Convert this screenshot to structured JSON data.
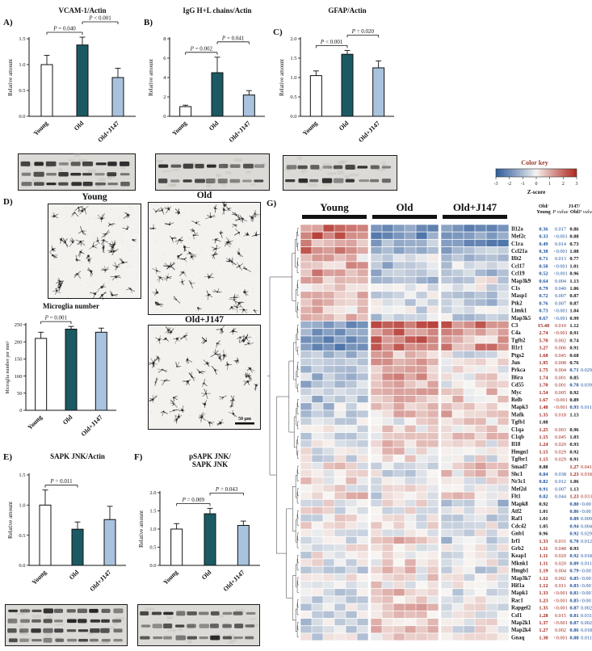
{
  "panel_labels": {
    "a": "A)",
    "b": "B)",
    "c": "C)",
    "d": "D)",
    "e": "E)",
    "f": "F)",
    "g": "G)"
  },
  "panel_d": {
    "images": [
      {
        "label": "Young"
      },
      {
        "label": "Old"
      },
      {
        "label": "Old+J147",
        "scale_bar": "50 µm"
      }
    ]
  },
  "chart_data": [
    {
      "type": "bar",
      "panel": "A",
      "title": [
        "VCAM-1/Actin"
      ],
      "ylabel": "Relative amount",
      "categories": [
        "Young",
        "Old",
        "Old+J147"
      ],
      "values": [
        1.0,
        1.38,
        0.75
      ],
      "errors": [
        0.18,
        0.2,
        0.18
      ],
      "ylim": [
        0,
        1.5
      ],
      "yticks": [
        0,
        0.5,
        1.0,
        1.5
      ],
      "ytick_labels": [
        "0.0",
        "0.5",
        "1.0",
        "1.5"
      ],
      "colors": [
        "#ffffff",
        "#1b5a63",
        "#a9c2dd"
      ],
      "sig": [
        {
          "a": 0,
          "b": 1,
          "label": "P = 0.040",
          "lvl": 1
        },
        {
          "a": 1,
          "b": 2,
          "label": "P < 0.001",
          "lvl": 2
        }
      ]
    },
    {
      "type": "bar",
      "panel": "B",
      "title": [
        "IgG H+L chains/Actin"
      ],
      "ylabel": "Relative amount",
      "categories": [
        "Young",
        "Old",
        "Old+J147"
      ],
      "values": [
        1.0,
        4.5,
        2.2
      ],
      "errors": [
        0.15,
        1.6,
        0.45
      ],
      "ylim": [
        0,
        8
      ],
      "yticks": [
        0,
        2,
        4,
        6,
        8
      ],
      "ytick_labels": [
        "0",
        "2",
        "4",
        "6",
        "8"
      ],
      "colors": [
        "#ffffff",
        "#1b5a63",
        "#a9c2dd"
      ],
      "sig": [
        {
          "a": 0,
          "b": 1,
          "label": "P = 0.002",
          "lvl": 1
        },
        {
          "a": 1,
          "b": 2,
          "label": "P = 0.041",
          "lvl": 2
        }
      ]
    },
    {
      "type": "bar",
      "panel": "C",
      "title": [
        "GFAP/Actin"
      ],
      "ylabel": "Relative amount",
      "categories": [
        "Young",
        "Old",
        "Old+J147"
      ],
      "values": [
        1.05,
        1.6,
        1.25
      ],
      "errors": [
        0.12,
        0.1,
        0.18
      ],
      "ylim": [
        0,
        2
      ],
      "yticks": [
        0,
        0.5,
        1.0,
        1.5,
        2.0
      ],
      "ytick_labels": [
        "0.0",
        "0.5",
        "1.0",
        "1.5",
        "2.0"
      ],
      "colors": [
        "#ffffff",
        "#1b5a63",
        "#a9c2dd"
      ],
      "sig": [
        {
          "a": 0,
          "b": 1,
          "label": "P < 0.001",
          "lvl": 1
        },
        {
          "a": 1,
          "b": 2,
          "label": "P = 0.020",
          "lvl": 2
        }
      ]
    },
    {
      "type": "bar",
      "panel": "D",
      "title": [
        "Microglia number"
      ],
      "ylabel": "Microglia number per mm²",
      "categories": [
        "Young",
        "Old",
        "Old+J147"
      ],
      "values": [
        210,
        237,
        228
      ],
      "errors": [
        18,
        8,
        12
      ],
      "ylim": [
        0,
        250
      ],
      "yticks": [
        0,
        50,
        100,
        150,
        200,
        250
      ],
      "ytick_labels": [
        "0",
        "50",
        "100",
        "150",
        "200",
        "250"
      ],
      "colors": [
        "#ffffff",
        "#1b5a63",
        "#a9c2dd"
      ],
      "sig": [
        {
          "a": 0,
          "b": 1,
          "label": "P = 0.001",
          "lvl": 1
        }
      ]
    },
    {
      "type": "bar",
      "panel": "E",
      "title": [
        "SAPK JNK/Actin"
      ],
      "ylabel": "Relative amount",
      "categories": [
        "Young",
        "Old",
        "Old+J147"
      ],
      "values": [
        1.0,
        0.6,
        0.76
      ],
      "errors": [
        0.25,
        0.12,
        0.22
      ],
      "ylim": [
        0,
        1.5
      ],
      "yticks": [
        0,
        0.5,
        1.0,
        1.5
      ],
      "ytick_labels": [
        "0.0",
        "0.5",
        "1.0",
        "1.5"
      ],
      "colors": [
        "#ffffff",
        "#1b5a63",
        "#a9c2dd"
      ],
      "sig": [
        {
          "a": 0,
          "b": 1,
          "label": "P = 0.011",
          "lvl": 1
        }
      ]
    },
    {
      "type": "bar",
      "panel": "F",
      "title": [
        "pSAPK JNK/",
        "SAPK JNK"
      ],
      "ylabel": "Relative amount",
      "categories": [
        "Young",
        "Old",
        "Old+J147"
      ],
      "values": [
        1.0,
        1.42,
        1.1
      ],
      "errors": [
        0.15,
        0.15,
        0.12
      ],
      "ylim": [
        0,
        2
      ],
      "yticks": [
        0,
        0.5,
        1.0,
        1.5,
        2.0
      ],
      "ytick_labels": [
        "0.0",
        "0.5",
        "1.0",
        "1.5",
        "2.0"
      ],
      "colors": [
        "#ffffff",
        "#1b5a63",
        "#a9c2dd"
      ],
      "sig": [
        {
          "a": 0,
          "b": 1,
          "label": "P = 0.009",
          "lvl": 1
        },
        {
          "a": 1,
          "b": 2,
          "label": "P = 0.043",
          "lvl": 2
        }
      ]
    },
    {
      "type": "heatmap",
      "panel": "G",
      "groups": [
        {
          "label": "Young",
          "n": 6
        },
        {
          "label": "Old",
          "n": 6
        },
        {
          "label": "Old+J147",
          "n": 6
        }
      ],
      "col_headers": [
        [
          "Old/",
          "Young"
        ],
        [
          "P value"
        ],
        [
          "J147/",
          "Old"
        ],
        [
          "P value"
        ]
      ],
      "color_key": {
        "title": "Color key",
        "title_color": "#9b3b30",
        "axis_label": "Z-score",
        "min": -3,
        "max": 3,
        "ticks": [
          "-3",
          "-2",
          "-1",
          "0",
          "1",
          "2",
          "3"
        ]
      },
      "value_colors": {
        "down": "#1d4f9c",
        "up": "#a1251b",
        "neutral": "#111111"
      },
      "rows": [
        [
          "Il12a",
          "0.36",
          "0.017",
          "0.86",
          ""
        ],
        [
          "Mef2c",
          "0.33",
          "<0.001",
          "0.88",
          ""
        ],
        [
          "C1ra",
          "0.49",
          "0.014",
          "0.73",
          ""
        ],
        [
          "Ccl21a",
          "0.38",
          "<0.001",
          "1.08",
          ""
        ],
        [
          "Ifit2",
          "0.71",
          "0.013",
          "0.77",
          ""
        ],
        [
          "Ccl17",
          "0.58",
          "<0.001",
          "1.01",
          ""
        ],
        [
          "Ccl19",
          "0.52",
          "<0.001",
          "0.96",
          ""
        ],
        [
          "Map3k9",
          "0.64",
          "0.004",
          "1.13",
          ""
        ],
        [
          "C1s",
          "0.79",
          "0.040",
          "1.06",
          ""
        ],
        [
          "Masp1",
          "0.72",
          "0.007",
          "0.87",
          ""
        ],
        [
          "Ptk2",
          "0.76",
          "0.007",
          "0.87",
          ""
        ],
        [
          "Limk1",
          "0.73",
          "<0.001",
          "1.04",
          ""
        ],
        [
          "Map3k5",
          "0.67",
          "<0.001",
          "0.99",
          ""
        ],
        [
          "C3",
          "15.40",
          "0.010",
          "1.12",
          ""
        ],
        [
          "C4a",
          "2.74",
          "<0.001",
          "0.91",
          ""
        ],
        [
          "Tgfb2",
          "5.70",
          "0.002",
          "0.74",
          ""
        ],
        [
          "Il1r1",
          "3.27",
          "0.006",
          "0.91",
          ""
        ],
        [
          "Ptgs2",
          "1.68",
          "0.045",
          "0.68",
          ""
        ],
        [
          "Jun",
          "1.95",
          "0.008",
          "0.76",
          ""
        ],
        [
          "Prkca",
          "1.75",
          "0.004",
          "0.71",
          "0.029"
        ],
        [
          "Il6ra",
          "1.74",
          "0.001",
          "0.85",
          ""
        ],
        [
          "Cd55",
          "1.70",
          "0.001",
          "0.78",
          "0.039"
        ],
        [
          "Myc",
          "1.54",
          "0.005",
          "0.92",
          ""
        ],
        [
          "Relb",
          "1.67",
          "<0.001",
          "0.89",
          ""
        ],
        [
          "Mapk3",
          "1.48",
          "<0.001",
          "0.93",
          "0.011"
        ],
        [
          "Mafk",
          "1.35",
          "0.018",
          "1.13",
          ""
        ],
        [
          "Tgfb1",
          "1.08",
          "",
          "",
          ""
        ],
        [
          "C1qa",
          "1.25",
          "0.003",
          "0.96",
          ""
        ],
        [
          "C1qb",
          "1.15",
          "0.045",
          "1.03",
          ""
        ],
        [
          "Il18",
          "1.24",
          "0.020",
          "0.93",
          ""
        ],
        [
          "Hmgn1",
          "1.15",
          "0.029",
          "0.92",
          ""
        ],
        [
          "Tgfbr1",
          "1.15",
          "0.029",
          "0.91",
          ""
        ],
        [
          "Smad7",
          "0.88",
          "",
          "1.27",
          "0.041"
        ],
        [
          "Shc1",
          "0.84",
          "0.038",
          "1.23",
          "0.018"
        ],
        [
          "Nr3c1",
          "0.82",
          "0.012",
          "1.06",
          ""
        ],
        [
          "Mef2d",
          "0.91",
          "0.007",
          "1.13",
          ""
        ],
        [
          "Flt1",
          "0.82",
          "0.044",
          "1.23",
          "0.033"
        ],
        [
          "Mapk8",
          "0.92",
          "",
          "0.80",
          "<0.001"
        ],
        [
          "Atf2",
          "1.01",
          "",
          "0.86",
          "<0.001"
        ],
        [
          "Raf1",
          "1.01",
          "",
          "0.89",
          "0.009"
        ],
        [
          "Cdc42",
          "1.05",
          "",
          "0.94",
          "0.004"
        ],
        [
          "Gnb1",
          "0.96",
          "",
          "0.92",
          "0.029"
        ],
        [
          "Irf1",
          "1.33",
          "0.031",
          "0.70",
          "0.012"
        ],
        [
          "Grb2",
          "1.11",
          "0.048",
          "0.93",
          ""
        ],
        [
          "Keap1",
          "1.11",
          "0.020",
          "0.92",
          "0.018"
        ],
        [
          "Mknk1",
          "1.11",
          "0.020",
          "0.89",
          "0.011"
        ],
        [
          "Hmgb1",
          "1.19",
          "0.004",
          "0.79",
          "<0.001"
        ],
        [
          "Map3k7",
          "1.12",
          "0.002",
          "0.85",
          "<0.001"
        ],
        [
          "Hif1a",
          "1.12",
          "0.011",
          "0.83",
          "<0.001"
        ],
        [
          "Mapk1",
          "1.33",
          "<0.001",
          "0.81",
          "<0.001"
        ],
        [
          "Rac1",
          "1.23",
          "<0.001",
          "0.85",
          "<0.001"
        ],
        [
          "Rapgef2",
          "1.35",
          "<0.001",
          "0.87",
          "0.002"
        ],
        [
          "Csf1",
          "1.28",
          "0.015",
          "0.81",
          "0.031"
        ],
        [
          "Map2k1",
          "1.37",
          "<0.001",
          "0.87",
          "0.002"
        ],
        [
          "Map2k4",
          "1.27",
          "0.002",
          "0.86",
          "0.018"
        ],
        [
          "Gnaq",
          "1.30",
          "<0.001",
          "0.88",
          "0.011"
        ]
      ]
    }
  ]
}
